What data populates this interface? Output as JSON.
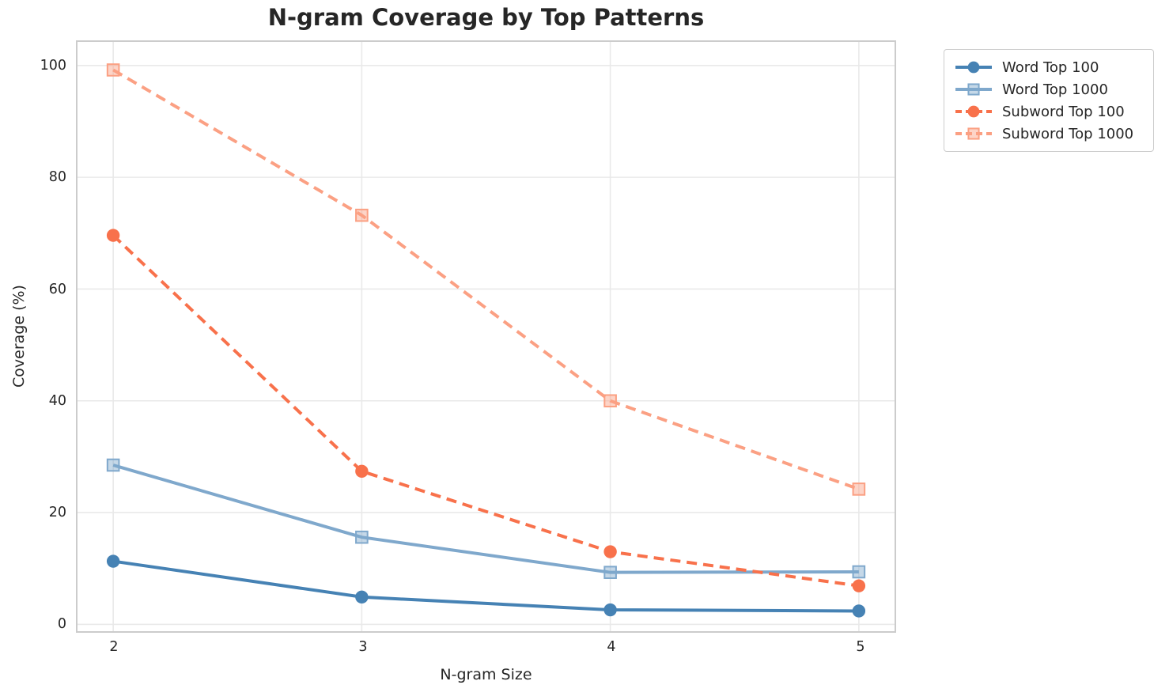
{
  "chart_data": {
    "type": "line",
    "title": "N-gram Coverage by Top Patterns",
    "xlabel": "N-gram Size",
    "ylabel": "Coverage (%)",
    "x": [
      2,
      3,
      4,
      5
    ],
    "xtick_labels": [
      "2",
      "3",
      "4",
      "5"
    ],
    "yticks": [
      0,
      20,
      40,
      60,
      80,
      100
    ],
    "ytick_labels": [
      "0",
      "20",
      "40",
      "60",
      "80",
      "100"
    ],
    "xlim": [
      1.85,
      5.15
    ],
    "ylim": [
      -1.5,
      104.5
    ],
    "grid": true,
    "legend_position": "outside-upper-right",
    "series": [
      {
        "name": "Word Top 100",
        "color": "#4682B4",
        "dash": "solid",
        "marker": "circle",
        "values": [
          11.3,
          4.9,
          2.6,
          2.4
        ]
      },
      {
        "name": "Word Top 1000",
        "color": "#7FA8CC",
        "dash": "solid",
        "marker": "square",
        "values": [
          28.5,
          15.6,
          9.3,
          9.4
        ]
      },
      {
        "name": "Subword Top 100",
        "color": "#F8714B",
        "dash": "dashed",
        "marker": "circle",
        "values": [
          69.6,
          27.4,
          13.0,
          6.9
        ]
      },
      {
        "name": "Subword Top 1000",
        "color": "#FBA083",
        "dash": "dashed",
        "marker": "square",
        "values": [
          99.2,
          73.2,
          40.0,
          24.2
        ]
      }
    ]
  },
  "colors": {
    "background": "#ffffff",
    "text": "#262626",
    "grid": "#e9e9e9",
    "spine": "#cccccc"
  }
}
